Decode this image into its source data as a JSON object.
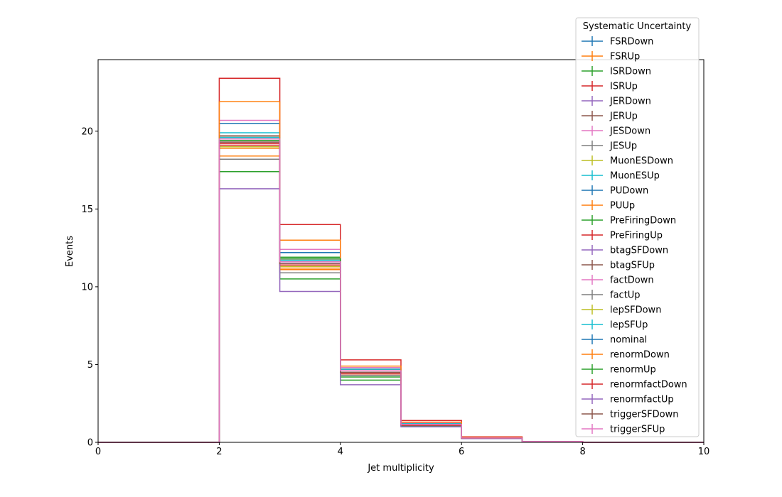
{
  "chart_data": {
    "type": "line",
    "style": "step-histogram",
    "xlabel": "Jet multiplicity",
    "ylabel": "Events",
    "xlim": [
      0,
      10
    ],
    "ylim": [
      0,
      24.6
    ],
    "x_ticks": [
      0,
      2,
      4,
      6,
      8,
      10
    ],
    "y_ticks": [
      0,
      5,
      10,
      15,
      20
    ],
    "grid": false,
    "legend": {
      "title": "Systematic Uncertainty",
      "placement": "top-right"
    },
    "bin_edges": [
      0,
      1,
      2,
      3,
      4,
      5,
      6,
      7,
      8,
      9,
      10
    ],
    "series": [
      {
        "name": "FSRDown",
        "color": "#1f77b4",
        "values": [
          0,
          0,
          20.5,
          12.2,
          4.7,
          1.2,
          0.3,
          0.05,
          0,
          0
        ]
      },
      {
        "name": "FSRUp",
        "color": "#ff7f0e",
        "values": [
          0,
          0,
          18.4,
          11.2,
          4.4,
          1.1,
          0.25,
          0.05,
          0,
          0
        ]
      },
      {
        "name": "ISRDown",
        "color": "#2ca02c",
        "values": [
          0,
          0,
          17.4,
          10.5,
          4.0,
          1.05,
          0.25,
          0.04,
          0,
          0
        ]
      },
      {
        "name": "ISRUp",
        "color": "#d62728",
        "values": [
          0,
          0,
          23.4,
          14.0,
          5.3,
          1.4,
          0.35,
          0.06,
          0,
          0
        ]
      },
      {
        "name": "JERDown",
        "color": "#9467bd",
        "values": [
          0,
          0,
          19.3,
          11.6,
          4.6,
          1.15,
          0.28,
          0.05,
          0,
          0
        ]
      },
      {
        "name": "JERUp",
        "color": "#8c564b",
        "values": [
          0,
          0,
          19.7,
          11.8,
          4.7,
          1.2,
          0.28,
          0.05,
          0,
          0
        ]
      },
      {
        "name": "JESDown",
        "color": "#e377c2",
        "values": [
          0,
          0,
          19.5,
          11.4,
          4.4,
          1.1,
          0.27,
          0.05,
          0,
          0
        ]
      },
      {
        "name": "JESUp",
        "color": "#7f7f7f",
        "values": [
          0,
          0,
          18.2,
          10.9,
          4.3,
          1.1,
          0.27,
          0.05,
          0,
          0
        ]
      },
      {
        "name": "MuonESDown",
        "color": "#bcbd22",
        "values": [
          0,
          0,
          19.6,
          11.7,
          4.6,
          1.2,
          0.28,
          0.05,
          0,
          0
        ]
      },
      {
        "name": "MuonESUp",
        "color": "#17becf",
        "values": [
          0,
          0,
          19.9,
          11.9,
          4.7,
          1.2,
          0.29,
          0.05,
          0,
          0
        ]
      },
      {
        "name": "PUDown",
        "color": "#1f77b4",
        "values": [
          0,
          0,
          19.6,
          11.7,
          4.6,
          1.15,
          0.28,
          0.05,
          0,
          0
        ]
      },
      {
        "name": "PUUp",
        "color": "#ff7f0e",
        "values": [
          0,
          0,
          18.9,
          11.1,
          4.5,
          1.15,
          0.27,
          0.05,
          0,
          0
        ]
      },
      {
        "name": "PreFiringDown",
        "color": "#2ca02c",
        "values": [
          0,
          0,
          19.6,
          11.9,
          4.6,
          1.2,
          0.28,
          0.05,
          0,
          0
        ]
      },
      {
        "name": "PreFiringUp",
        "color": "#d62728",
        "values": [
          0,
          0,
          19.1,
          11.4,
          4.5,
          1.15,
          0.27,
          0.05,
          0,
          0
        ]
      },
      {
        "name": "btagSFDown",
        "color": "#9467bd",
        "values": [
          0,
          0,
          19.2,
          11.5,
          4.5,
          1.15,
          0.27,
          0.05,
          0,
          0
        ]
      },
      {
        "name": "btagSFUp",
        "color": "#8c564b",
        "values": [
          0,
          0,
          19.7,
          11.7,
          4.6,
          1.2,
          0.28,
          0.05,
          0,
          0
        ]
      },
      {
        "name": "factDown",
        "color": "#e377c2",
        "values": [
          0,
          0,
          20.7,
          12.4,
          4.8,
          1.25,
          0.3,
          0.05,
          0,
          0
        ]
      },
      {
        "name": "factUp",
        "color": "#7f7f7f",
        "values": [
          0,
          0,
          19.4,
          11.6,
          4.5,
          1.15,
          0.27,
          0.05,
          0,
          0
        ]
      },
      {
        "name": "lepSFDown",
        "color": "#bcbd22",
        "values": [
          0,
          0,
          19.0,
          11.3,
          4.4,
          1.15,
          0.27,
          0.05,
          0,
          0
        ]
      },
      {
        "name": "lepSFUp",
        "color": "#17becf",
        "values": [
          0,
          0,
          19.6,
          11.7,
          4.6,
          1.2,
          0.28,
          0.05,
          0,
          0
        ]
      },
      {
        "name": "nominal",
        "color": "#1f77b4",
        "values": [
          0,
          0,
          19.5,
          11.6,
          4.6,
          1.15,
          0.28,
          0.05,
          0,
          0
        ]
      },
      {
        "name": "renormDown",
        "color": "#ff7f0e",
        "values": [
          0,
          0,
          21.9,
          13.0,
          4.9,
          1.3,
          0.32,
          0.06,
          0,
          0
        ]
      },
      {
        "name": "renormUp",
        "color": "#2ca02c",
        "values": [
          0,
          0,
          19.4,
          11.8,
          4.2,
          1.15,
          0.27,
          0.05,
          0,
          0
        ]
      },
      {
        "name": "renormfactDown",
        "color": "#d62728",
        "values": [
          0,
          0,
          19.2,
          11.4,
          4.4,
          1.1,
          0.27,
          0.05,
          0,
          0
        ]
      },
      {
        "name": "renormfactUp",
        "color": "#9467bd",
        "values": [
          0,
          0,
          16.3,
          9.7,
          3.7,
          1.0,
          0.24,
          0.04,
          0,
          0
        ]
      },
      {
        "name": "triggerSFDown",
        "color": "#8c564b",
        "values": [
          0,
          0,
          19.3,
          11.5,
          4.5,
          1.15,
          0.27,
          0.05,
          0,
          0
        ]
      },
      {
        "name": "triggerSFUp",
        "color": "#e377c2",
        "values": [
          0,
          0,
          19.5,
          11.6,
          4.6,
          1.15,
          0.28,
          0.05,
          0,
          0
        ]
      }
    ]
  }
}
